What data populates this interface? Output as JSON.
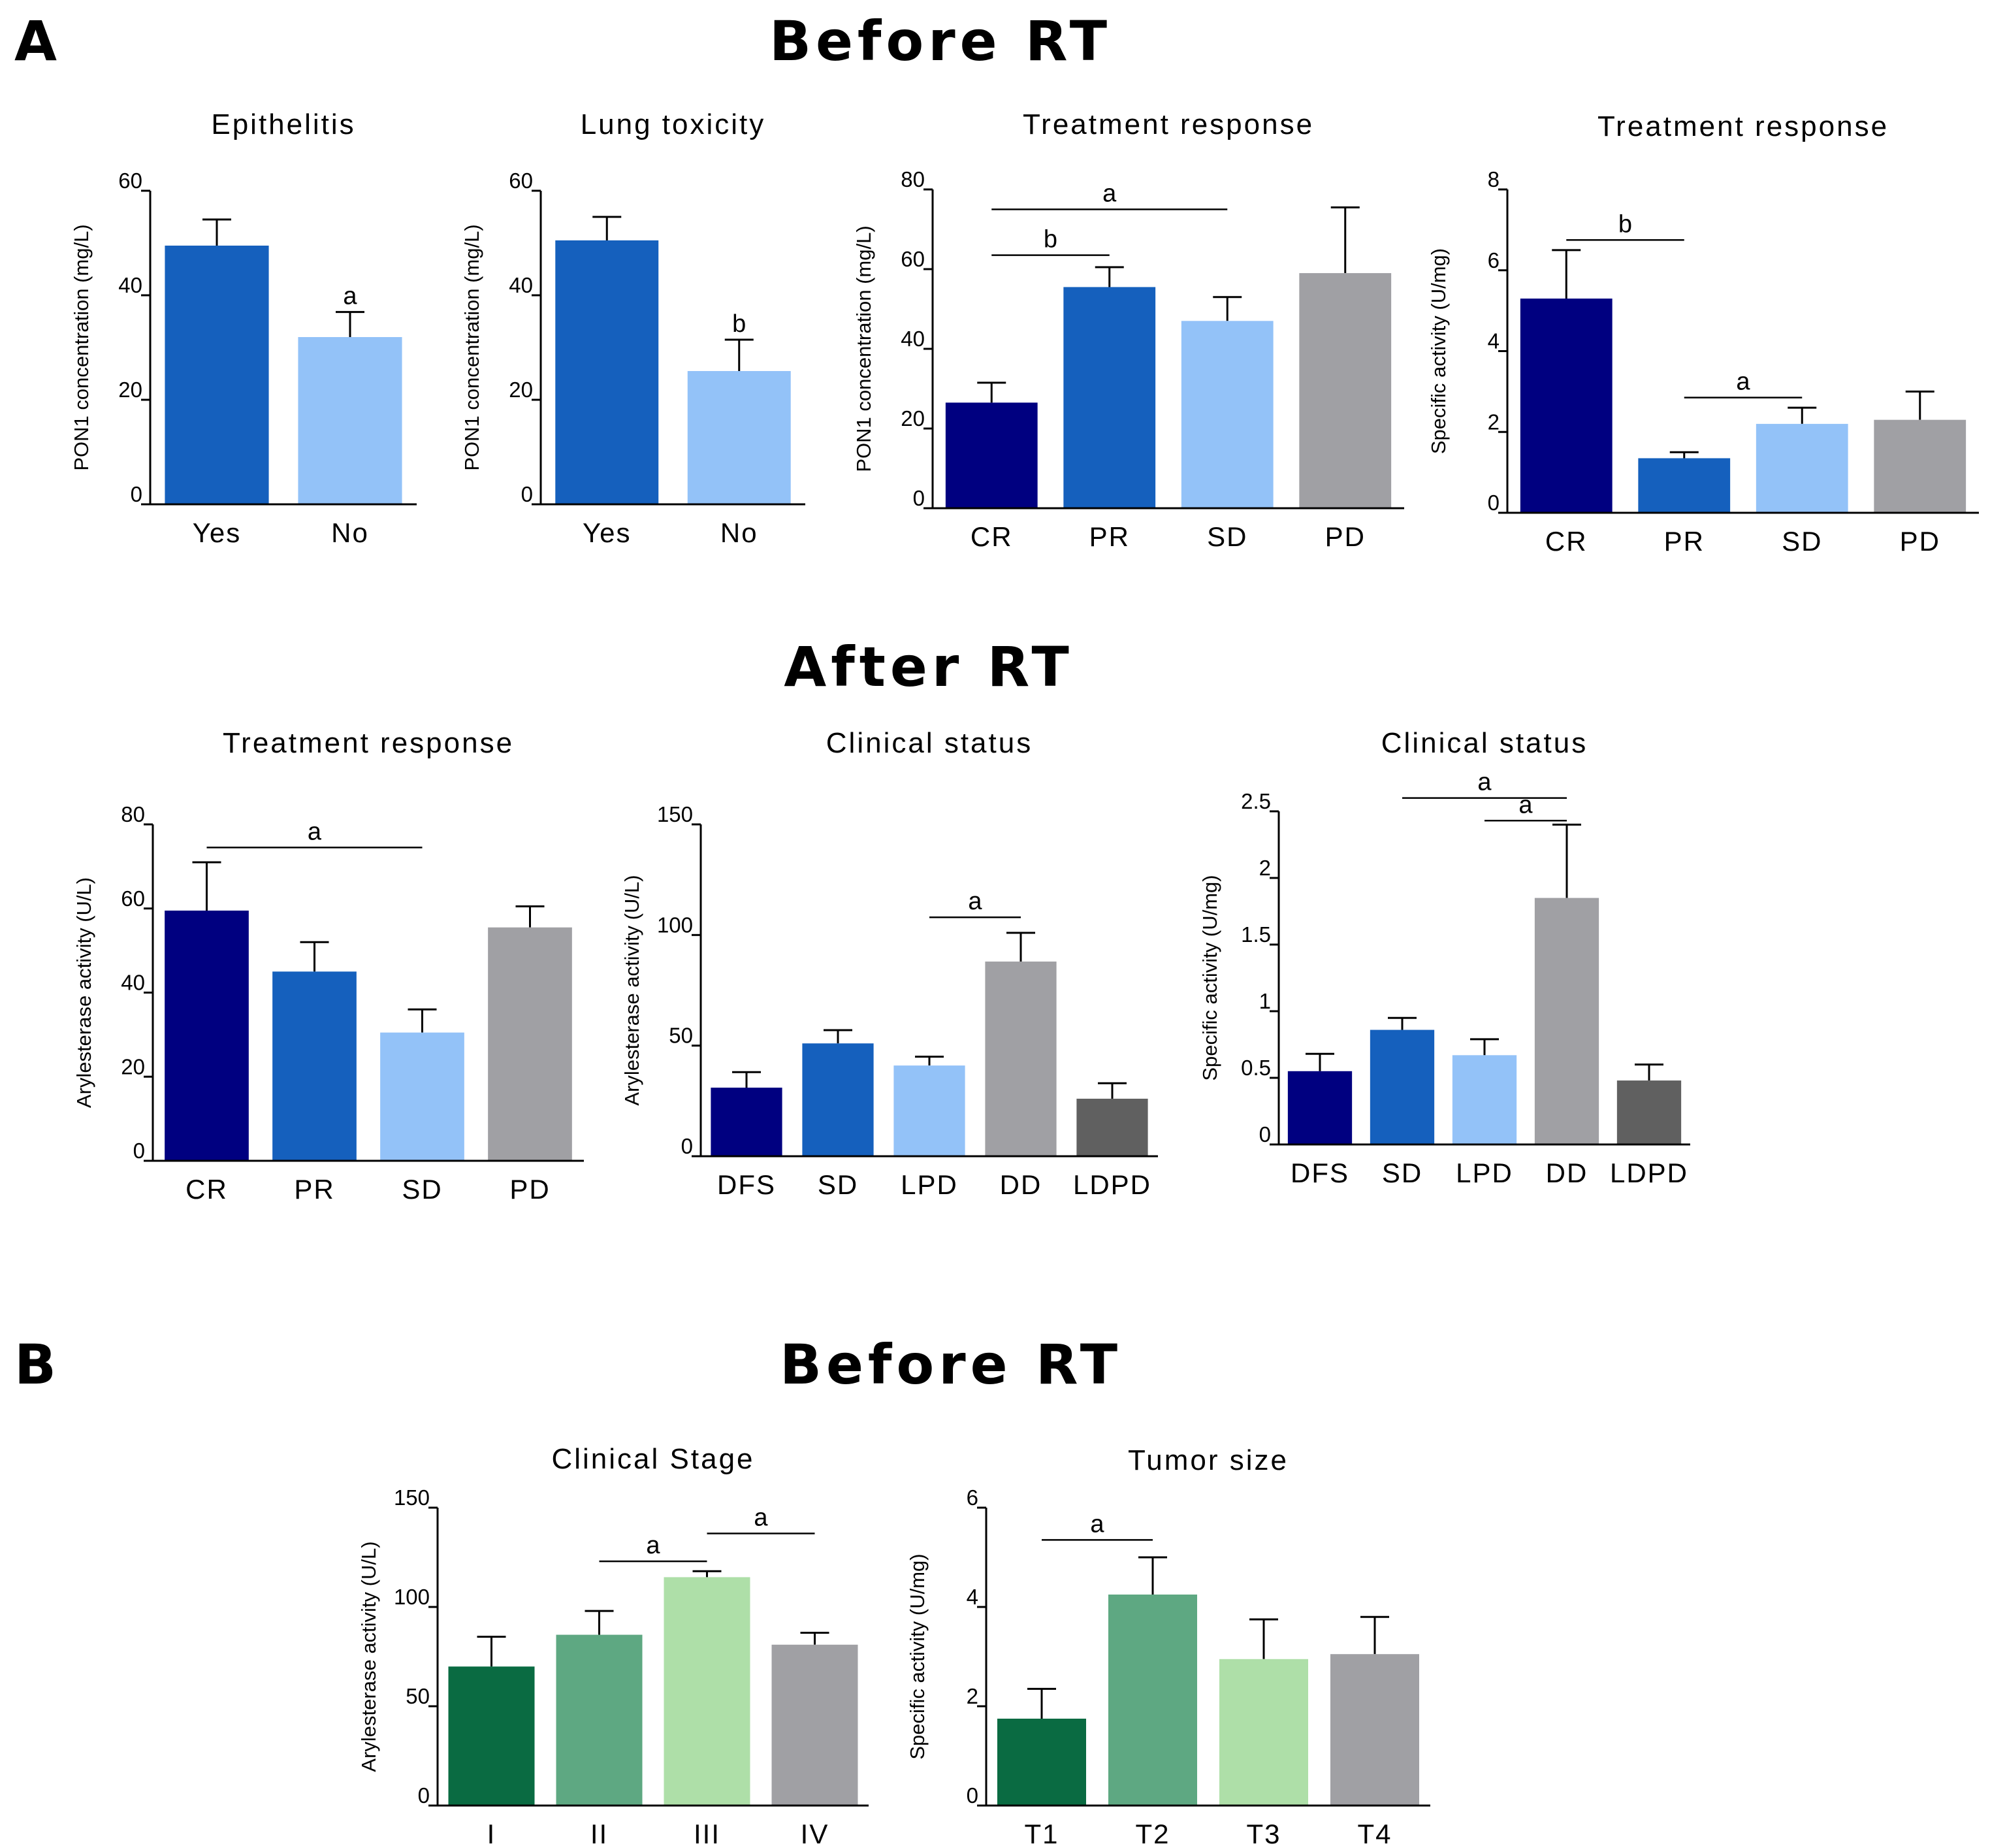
{
  "figure": {
    "panels": {
      "a": "A",
      "b": "B"
    },
    "sections": {
      "before_a": "Before RT",
      "after_a": "After RT",
      "before_b": "Before RT"
    }
  },
  "colors": {
    "navy": "#000080",
    "blue": "#1560bd",
    "lightblue": "#93c2f8",
    "gray": "#a0a0a4",
    "darkgray": "#606060",
    "darkgreen": "#0a6b42",
    "green": "#5ea882",
    "lightgreen": "#aedfa8"
  },
  "chart_data": [
    {
      "id": "c1",
      "type": "bar",
      "title": "Epithelitis",
      "ylabel": "PON1 concentration (mg/L)",
      "categories": [
        "Yes",
        "No"
      ],
      "values": [
        49.5,
        32
      ],
      "errors": [
        5,
        4.8
      ],
      "colors": [
        "#1560bd",
        "#93c2f8"
      ],
      "ylim": [
        0,
        60
      ],
      "yticks": [
        "0",
        "20",
        "40",
        "60"
      ],
      "annotations": [
        {
          "label": "a",
          "type": "letter",
          "bar": 1
        }
      ]
    },
    {
      "id": "c2",
      "type": "bar",
      "title": "Lung toxicity",
      "ylabel": "PON1 concentration (mg/L)",
      "categories": [
        "Yes",
        "No"
      ],
      "values": [
        50.5,
        25.5
      ],
      "errors": [
        4.5,
        6
      ],
      "colors": [
        "#1560bd",
        "#93c2f8"
      ],
      "ylim": [
        0,
        60
      ],
      "yticks": [
        "0",
        "20",
        "40",
        "60"
      ],
      "annotations": [
        {
          "label": "b",
          "type": "letter",
          "bar": 1
        }
      ]
    },
    {
      "id": "c3",
      "type": "bar",
      "title": "Treatment response",
      "ylabel": "PON1 concentration (mg/L)",
      "categories": [
        "CR",
        "PR",
        "SD",
        "PD"
      ],
      "values": [
        26.5,
        55.5,
        47,
        59
      ],
      "errors": [
        5,
        5,
        6,
        16.5
      ],
      "colors": [
        "#000080",
        "#1560bd",
        "#93c2f8",
        "#a0a0a4"
      ],
      "ylim": [
        0,
        80
      ],
      "yticks": [
        "0",
        "20",
        "40",
        "60",
        "80"
      ],
      "annotations": [
        {
          "label": "b",
          "type": "line",
          "from": 0,
          "to": 1,
          "level": 63.5
        },
        {
          "label": "a",
          "type": "line",
          "from": 0,
          "to": 2,
          "level": 75
        }
      ]
    },
    {
      "id": "c4",
      "type": "bar",
      "title": "Treatment response",
      "ylabel": "Specific activity (U/mg)",
      "categories": [
        "CR",
        "PR",
        "SD",
        "PD"
      ],
      "values": [
        5.3,
        1.35,
        2.2,
        2.3
      ],
      "errors": [
        1.2,
        0.15,
        0.4,
        0.7
      ],
      "colors": [
        "#000080",
        "#1560bd",
        "#93c2f8",
        "#a0a0a4"
      ],
      "ylim": [
        0,
        8
      ],
      "yticks": [
        "0",
        "2",
        "4",
        "6",
        "8"
      ],
      "annotations": [
        {
          "label": "b",
          "type": "line",
          "from": 0,
          "to": 1,
          "level": 6.75
        },
        {
          "label": "a",
          "type": "line",
          "from": 1,
          "to": 2,
          "level": 2.85
        }
      ]
    },
    {
      "id": "c5",
      "type": "bar",
      "title": "Treatment response",
      "ylabel": "Arylesterase activity (U/L)",
      "categories": [
        "CR",
        "PR",
        "SD",
        "PD"
      ],
      "values": [
        59.5,
        45,
        30.5,
        55.5
      ],
      "errors": [
        11.5,
        7,
        5.5,
        5
      ],
      "colors": [
        "#000080",
        "#1560bd",
        "#93c2f8",
        "#a0a0a4"
      ],
      "ylim": [
        0,
        80
      ],
      "yticks": [
        "0",
        "20",
        "40",
        "60",
        "80"
      ],
      "annotations": [
        {
          "label": "a",
          "type": "line",
          "from": 0,
          "to": 2,
          "level": 74.5
        }
      ]
    },
    {
      "id": "c6",
      "type": "bar",
      "title": "Clinical status",
      "ylabel": "Arylesterase activity (U/L)",
      "categories": [
        "DFS",
        "SD",
        "LPD",
        "DD",
        "LDPD"
      ],
      "values": [
        31,
        51,
        41,
        88,
        26
      ],
      "errors": [
        7,
        6,
        4,
        13,
        7
      ],
      "colors": [
        "#000080",
        "#1560bd",
        "#93c2f8",
        "#a0a0a4",
        "#606060"
      ],
      "ylim": [
        0,
        150
      ],
      "yticks": [
        "0",
        "50",
        "100",
        "150"
      ],
      "annotations": [
        {
          "label": "a",
          "type": "line",
          "from": 2,
          "to": 3,
          "level": 108
        }
      ]
    },
    {
      "id": "c7",
      "type": "bar",
      "title": "Clinical status",
      "ylabel": "Specific activity (U/mg)",
      "categories": [
        "DFS",
        "SD",
        "LPD",
        "DD",
        "LDPD"
      ],
      "values": [
        0.55,
        0.86,
        0.67,
        1.85,
        0.48
      ],
      "errors": [
        0.13,
        0.09,
        0.12,
        0.55,
        0.12
      ],
      "colors": [
        "#000080",
        "#1560bd",
        "#93c2f8",
        "#a0a0a4",
        "#606060"
      ],
      "ylim": [
        0,
        2.5
      ],
      "yticks": [
        "0",
        "0.5",
        "1",
        "1.5",
        "2",
        "2.5"
      ],
      "annotations": [
        {
          "label": "a",
          "type": "line",
          "from": 2,
          "to": 3,
          "level": 2.43
        },
        {
          "label": "a",
          "type": "line",
          "from": 1,
          "to": 3,
          "level": 2.6
        }
      ]
    },
    {
      "id": "c8",
      "type": "bar",
      "title": "Clinical Stage",
      "ylabel": "Arylesterase activity (U/L)",
      "categories": [
        "I",
        "II",
        "III",
        "IV"
      ],
      "values": [
        70,
        86,
        115,
        81
      ],
      "errors": [
        15,
        12,
        3,
        6
      ],
      "colors": [
        "#0a6b42",
        "#5ea882",
        "#aedfa8",
        "#a0a0a4"
      ],
      "ylim": [
        0,
        150
      ],
      "yticks": [
        "0",
        "50",
        "100",
        "150"
      ],
      "annotations": [
        {
          "label": "a",
          "type": "line",
          "from": 1,
          "to": 2,
          "level": 123
        },
        {
          "label": "a",
          "type": "line",
          "from": 2,
          "to": 3,
          "level": 137
        }
      ]
    },
    {
      "id": "c9",
      "type": "bar",
      "title": "Tumor size",
      "ylabel": "Specific activity (U/mg)",
      "categories": [
        "T1",
        "T2",
        "T3",
        "T4"
      ],
      "values": [
        1.75,
        4.25,
        2.95,
        3.05
      ],
      "errors": [
        0.6,
        0.75,
        0.8,
        0.75
      ],
      "colors": [
        "#0a6b42",
        "#5ea882",
        "#aedfa8",
        "#a0a0a4"
      ],
      "ylim": [
        0,
        6
      ],
      "yticks": [
        "0",
        "2",
        "4",
        "6"
      ],
      "annotations": [
        {
          "label": "a",
          "type": "line",
          "from": 0,
          "to": 1,
          "level": 5.35
        }
      ]
    }
  ]
}
